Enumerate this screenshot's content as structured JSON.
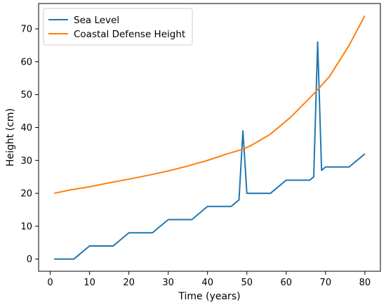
{
  "chart_data": {
    "type": "line",
    "title": "",
    "xlabel": "Time (years)",
    "ylabel": "Height (cm)",
    "xlim": [
      -2.95,
      83.95
    ],
    "ylim": [
      -3.7,
      77.7
    ],
    "xticks": [
      0,
      10,
      20,
      30,
      40,
      50,
      60,
      70,
      80
    ],
    "yticks": [
      0,
      10,
      20,
      30,
      40,
      50,
      60,
      70
    ],
    "grid": false,
    "legend_position": "top-left",
    "series": [
      {
        "name": "Sea Level",
        "color": "#1f77b4",
        "x": [
          1,
          6,
          10,
          16,
          20,
          26,
          30,
          36,
          40,
          46,
          48,
          49,
          50,
          56,
          60,
          66,
          67,
          68,
          69,
          70,
          76,
          80
        ],
        "y": [
          0,
          0,
          4,
          4,
          8,
          8,
          12,
          12,
          16,
          16,
          18,
          39,
          20,
          20,
          24,
          24,
          25,
          66,
          27,
          28,
          28,
          32
        ]
      },
      {
        "name": "Coastal Defense Height",
        "color": "#ff7f0e",
        "x": [
          1,
          5,
          10,
          15,
          20,
          25,
          30,
          35,
          40,
          45,
          49,
          51,
          56,
          61,
          66,
          68,
          71,
          76,
          80
        ],
        "y": [
          20,
          21,
          22,
          23.2,
          24.3,
          25.5,
          26.8,
          28.3,
          30,
          32,
          33.4,
          34.5,
          38,
          43,
          49,
          51.5,
          55.5,
          65,
          74
        ]
      }
    ]
  }
}
